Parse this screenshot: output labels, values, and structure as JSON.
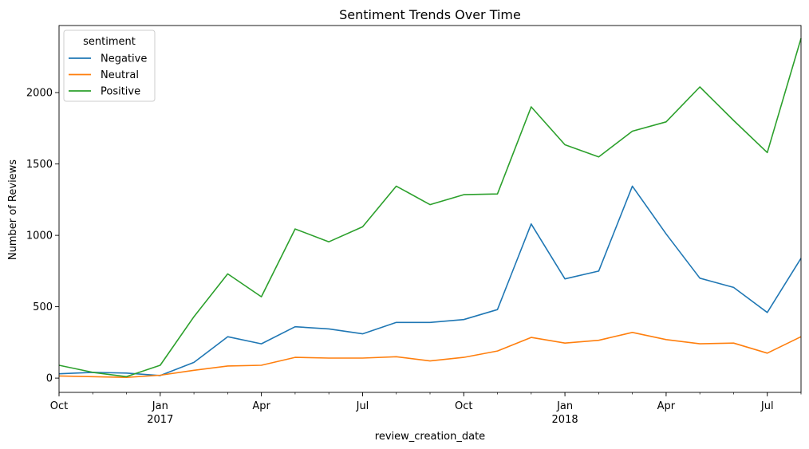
{
  "chart_data": {
    "type": "line",
    "title": "Sentiment Trends Over Time",
    "xlabel": "review_creation_date",
    "ylabel": "Number of Reviews",
    "x": [
      "2016-10",
      "2016-11",
      "2016-12",
      "2017-01",
      "2017-02",
      "2017-03",
      "2017-04",
      "2017-05",
      "2017-06",
      "2017-07",
      "2017-08",
      "2017-09",
      "2017-10",
      "2017-11",
      "2017-12",
      "2018-01",
      "2018-02",
      "2018-03",
      "2018-04",
      "2018-05",
      "2018-06",
      "2018-07",
      "2018-08"
    ],
    "xlim": [
      "2016-10",
      "2018-08"
    ],
    "ylim": [
      -100,
      2470
    ],
    "yticks": [
      0,
      500,
      1000,
      1500,
      2000
    ],
    "ytick_labels": [
      "0",
      "500",
      "1000",
      "1500",
      "2000"
    ],
    "xticks": [
      {
        "x": "2016-10",
        "label": "Oct",
        "sublabel": ""
      },
      {
        "x": "2017-01",
        "label": "Jan",
        "sublabel": "2017"
      },
      {
        "x": "2017-04",
        "label": "Apr",
        "sublabel": ""
      },
      {
        "x": "2017-07",
        "label": "Jul",
        "sublabel": ""
      },
      {
        "x": "2017-10",
        "label": "Oct",
        "sublabel": ""
      },
      {
        "x": "2018-01",
        "label": "Jan",
        "sublabel": "2018"
      },
      {
        "x": "2018-04",
        "label": "Apr",
        "sublabel": ""
      },
      {
        "x": "2018-07",
        "label": "Jul",
        "sublabel": ""
      }
    ],
    "grid": false,
    "legend": {
      "title": "sentiment",
      "position": "top-left"
    },
    "series": [
      {
        "name": "Negative",
        "color": "#1f77b4",
        "values": [
          30,
          40,
          35,
          18,
          110,
          290,
          240,
          360,
          345,
          310,
          390,
          390,
          410,
          480,
          1080,
          695,
          750,
          1345,
          1010,
          700,
          635,
          460,
          840
        ]
      },
      {
        "name": "Neutral",
        "color": "#ff7f0e",
        "values": [
          15,
          10,
          5,
          20,
          55,
          85,
          90,
          145,
          140,
          140,
          150,
          120,
          145,
          190,
          285,
          245,
          265,
          320,
          270,
          240,
          245,
          175,
          290
        ]
      },
      {
        "name": "Positive",
        "color": "#2ca02c",
        "values": [
          90,
          40,
          10,
          90,
          430,
          730,
          570,
          1045,
          955,
          1060,
          1345,
          1215,
          1285,
          1290,
          1900,
          1635,
          1550,
          1730,
          1795,
          2040,
          1805,
          1580,
          2380
        ]
      }
    ]
  }
}
